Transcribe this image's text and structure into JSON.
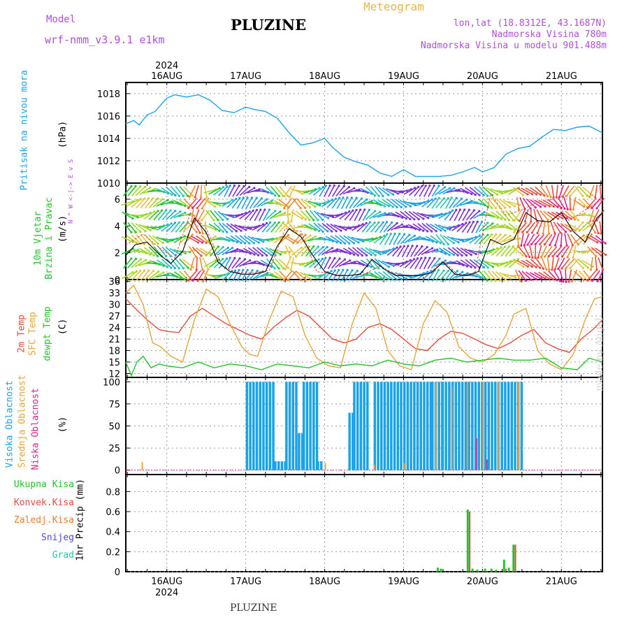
{
  "header": {
    "model_label": "Model",
    "model_value": "wrf-nmm_v3.9.1 e1km",
    "title": "PLUZINE",
    "meteogram": "Meteogram",
    "lonlat": "lon,lat (18.8312E, 43.1687N)",
    "elevation": "Nadmorska Visina 780m",
    "model_elevation": "Nadmorska Visina u modelu 901.488m"
  },
  "footer": {
    "station": "PLUZINE",
    "credit": "made by Angel"
  },
  "colors": {
    "pressure": "#1aa3e8",
    "temp2m": "#e84a3c",
    "sfc": "#e6a53a",
    "dew": "#22c42a",
    "high_cloud": "#1aa3e8",
    "mid_cloud": "#e6a53a",
    "low_cloud": "#e0208a",
    "frame": "#000000",
    "grid": "#9a9a9a"
  },
  "chart_data": [
    {
      "type": "line",
      "panel": "pressure",
      "ylabel_outer": "Pritisak na nivou mora",
      "ylabel": "(hPa)",
      "ylim": [
        1010,
        1019
      ],
      "yticks": [
        1010,
        1012,
        1014,
        1016,
        1018
      ],
      "xlim": [
        -0.52,
        5.52
      ],
      "x_tick_days": [
        0,
        1,
        2,
        3,
        4,
        5
      ],
      "x_tick_labels": [
        "16AUG",
        "17AUG",
        "18AUG",
        "19AUG",
        "20AUG",
        "21AUG"
      ],
      "year_label": "2024",
      "series": [
        {
          "name": "Pritisak na nivou mora",
          "x": [
            -0.52,
            -0.42,
            -0.35,
            -0.25,
            -0.15,
            0,
            0.1,
            0.25,
            0.4,
            0.55,
            0.7,
            0.85,
            1.0,
            1.1,
            1.25,
            1.4,
            1.55,
            1.7,
            1.85,
            2.0,
            2.1,
            2.25,
            2.4,
            2.55,
            2.7,
            2.85,
            3.0,
            3.15,
            3.3,
            3.45,
            3.6,
            3.75,
            3.9,
            4.0,
            4.15,
            4.3,
            4.45,
            4.6,
            4.75,
            4.9,
            5.05,
            5.2,
            5.35,
            5.52
          ],
          "values": [
            1015.3,
            1015.6,
            1015.2,
            1016.1,
            1016.4,
            1017.6,
            1017.9,
            1017.7,
            1017.9,
            1017.4,
            1016.5,
            1016.3,
            1016.8,
            1016.6,
            1016.4,
            1015.8,
            1014.5,
            1013.4,
            1013.6,
            1014.0,
            1013.2,
            1012.3,
            1011.9,
            1011.6,
            1010.9,
            1010.6,
            1011.2,
            1010.6,
            1010.6,
            1010.6,
            1010.7,
            1011.0,
            1011.4,
            1011.0,
            1011.4,
            1012.6,
            1013.1,
            1013.3,
            1014.1,
            1014.8,
            1014.7,
            1015.0,
            1015.1,
            1014.5
          ]
        }
      ]
    },
    {
      "type": "line",
      "panel": "wind",
      "ylabel_outer": "10m Vjetar Brzina i Pravac",
      "ylabel": "(m/s)",
      "ylim": [
        0,
        7.2
      ],
      "yticks": [
        0,
        2,
        4,
        6
      ],
      "compass": "N ^ W <-|-> E v S",
      "series": [
        {
          "name": "speed",
          "x": [
            -0.52,
            -0.4,
            -0.25,
            -0.1,
            0.05,
            0.2,
            0.35,
            0.5,
            0.65,
            0.8,
            0.95,
            1.1,
            1.25,
            1.4,
            1.55,
            1.7,
            1.85,
            2.0,
            2.15,
            2.3,
            2.45,
            2.6,
            2.75,
            2.9,
            3.05,
            3.2,
            3.35,
            3.5,
            3.65,
            3.8,
            3.95,
            4.1,
            4.25,
            4.4,
            4.55,
            4.7,
            4.85,
            5.0,
            5.15,
            5.3,
            5.45,
            5.52
          ],
          "values": [
            1.8,
            2.6,
            2.8,
            1.9,
            1.2,
            2.1,
            4.6,
            3.5,
            1.3,
            0.6,
            0.4,
            0.4,
            0.6,
            2.5,
            3.8,
            3.2,
            1.8,
            0.6,
            0.3,
            0.3,
            0.4,
            1.5,
            0.8,
            0.3,
            0.3,
            0.3,
            0.5,
            1.3,
            0.4,
            0.3,
            0.6,
            3.0,
            2.6,
            3.0,
            5.0,
            4.4,
            4.3,
            5.0,
            3.6,
            2.8,
            4.6,
            5.0
          ]
        },
        {
          "name": "gust",
          "x": [
            -0.52,
            -0.3,
            -0.1,
            0.1,
            0.3,
            0.5,
            0.7,
            0.9,
            1.1,
            1.3,
            1.5,
            1.7,
            1.9,
            2.1,
            2.3,
            2.5,
            2.7,
            2.9,
            3.1,
            3.3,
            3.5,
            3.7,
            3.9,
            4.1,
            4.3,
            4.5,
            4.7,
            4.9,
            5.1,
            5.3,
            5.52
          ],
          "values": [
            2.6,
            3.4,
            2.4,
            1.6,
            5.0,
            3.8,
            1.0,
            0.5,
            0.5,
            0.7,
            3.8,
            3.6,
            0.6,
            0.4,
            0.3,
            0.4,
            1.0,
            0.4,
            0.3,
            0.3,
            1.4,
            0.3,
            0.4,
            6.4,
            4.8,
            5.2,
            5.8,
            6.0,
            4.4,
            5.2,
            6.0
          ]
        }
      ]
    },
    {
      "type": "line",
      "panel": "temperature",
      "ylabel_lines": [
        "2m Temp",
        "SFC Temp",
        "dewpt Temp"
      ],
      "ylabel": "(C)",
      "ylim": [
        11,
        36.5
      ],
      "yticks": [
        12,
        15,
        18,
        21,
        24,
        27,
        30,
        33,
        36
      ],
      "series": [
        {
          "name": "2m Temp",
          "x": [
            -0.52,
            -0.4,
            -0.25,
            -0.1,
            0,
            0.15,
            0.3,
            0.45,
            0.6,
            0.75,
            0.9,
            1.05,
            1.2,
            1.35,
            1.5,
            1.65,
            1.8,
            1.95,
            2.1,
            2.25,
            2.4,
            2.55,
            2.7,
            2.85,
            3.0,
            3.15,
            3.3,
            3.45,
            3.6,
            3.75,
            3.9,
            4.05,
            4.2,
            4.35,
            4.5,
            4.65,
            4.8,
            4.95,
            5.1,
            5.25,
            5.4,
            5.52
          ],
          "values": [
            31.5,
            29,
            26,
            23.5,
            23,
            22.7,
            27,
            29,
            27,
            25,
            23.5,
            22,
            21,
            24,
            26.5,
            28.5,
            27,
            24,
            21,
            20,
            21,
            24,
            25,
            23.5,
            21,
            18.5,
            18,
            21,
            23,
            22.5,
            21,
            19.5,
            18.5,
            20,
            22,
            23.5,
            20,
            18.5,
            17.5,
            21,
            23.5,
            26
          ]
        },
        {
          "name": "SFC Temp",
          "x": [
            -0.52,
            -0.42,
            -0.3,
            -0.18,
            -0.08,
            0.05,
            0.2,
            0.35,
            0.5,
            0.65,
            0.8,
            0.95,
            1.05,
            1.15,
            1.3,
            1.45,
            1.6,
            1.75,
            1.9,
            2.05,
            2.2,
            2.35,
            2.5,
            2.65,
            2.8,
            2.95,
            3.1,
            3.25,
            3.4,
            3.55,
            3.7,
            3.85,
            4.0,
            4.15,
            4.3,
            4.4,
            4.55,
            4.7,
            4.85,
            5.0,
            5.15,
            5.3,
            5.42,
            5.52
          ],
          "values": [
            33,
            35,
            30,
            20,
            19,
            16.5,
            15,
            26,
            34,
            32,
            25,
            19,
            17,
            16.5,
            26,
            33.5,
            32,
            22,
            16,
            14,
            13.5,
            25,
            33,
            29,
            18,
            14,
            13,
            25,
            31,
            28,
            19,
            16,
            15,
            17,
            22,
            27.5,
            29,
            18,
            14.5,
            13,
            17,
            26,
            31.5,
            32
          ]
        },
        {
          "name": "dewpt Temp",
          "x": [
            -0.52,
            -0.45,
            -0.38,
            -0.3,
            -0.2,
            -0.1,
            0,
            0.2,
            0.4,
            0.6,
            0.8,
            1.0,
            1.2,
            1.4,
            1.6,
            1.8,
            2.0,
            2.2,
            2.4,
            2.6,
            2.8,
            3.0,
            3.2,
            3.4,
            3.6,
            3.8,
            4.0,
            4.2,
            4.4,
            4.6,
            4.8,
            5.0,
            5.2,
            5.35,
            5.52
          ],
          "values": [
            15,
            11.5,
            15,
            16.5,
            13.5,
            14.5,
            14,
            13.5,
            15,
            13.5,
            14.5,
            14,
            13,
            14.5,
            14,
            13.5,
            15,
            14,
            14.5,
            14,
            15.5,
            14.5,
            14,
            15.5,
            16,
            15,
            15.5,
            16,
            15.5,
            15.5,
            16,
            13.5,
            13,
            16,
            15
          ]
        }
      ]
    },
    {
      "type": "bar",
      "panel": "clouds",
      "ylabel_lines": [
        "Visoka Oblacnost",
        "Srednja Oblacnost",
        "Niska Oblacnost"
      ],
      "ylabel": "(%)",
      "ylim": [
        -5,
        105
      ],
      "yticks": [
        0,
        25,
        50,
        75,
        100
      ],
      "series": [
        {
          "name": "Visoka Oblacnost",
          "segments": [
            {
              "from": 1.0,
              "to": 1.35,
              "value": 100
            },
            {
              "from": 1.36,
              "to": 1.5,
              "value": 10
            },
            {
              "from": 1.5,
              "to": 1.65,
              "value": 100
            },
            {
              "from": 1.66,
              "to": 1.72,
              "value": 42
            },
            {
              "from": 1.72,
              "to": 1.9,
              "value": 100
            },
            {
              "from": 1.9,
              "to": 1.95,
              "value": 10
            },
            {
              "from": 2.3,
              "to": 2.36,
              "value": 65
            },
            {
              "from": 2.36,
              "to": 2.55,
              "value": 100
            },
            {
              "from": 2.62,
              "to": 3.35,
              "value": 100
            },
            {
              "from": 3.35,
              "to": 3.48,
              "value": 100
            },
            {
              "from": 3.48,
              "to": 4.5,
              "value": 100
            }
          ]
        },
        {
          "name": "Srednja Oblacnost",
          "points": [
            [
              -0.32,
              9
            ],
            [
              2.0,
              8
            ],
            [
              2.62,
              6
            ],
            [
              3.0,
              8
            ],
            [
              3.4,
              100
            ],
            [
              3.6,
              95
            ],
            [
              3.8,
              100
            ],
            [
              4.0,
              100
            ],
            [
              4.2,
              100
            ],
            [
              4.45,
              100
            ]
          ]
        },
        {
          "name": "Niska Oblacnost",
          "points": [
            [
              3.92,
              36
            ],
            [
              4.05,
              12
            ]
          ]
        }
      ]
    },
    {
      "type": "bar",
      "panel": "precipitation",
      "ylabel_lines": [
        "Ukupna Kisa",
        "Konvek.Kisa",
        "Zaledj.Kisa",
        "Snijeg",
        "Grad"
      ],
      "ylabel": "1hr Precip (mm)",
      "ylim": [
        0,
        0.97
      ],
      "yticks": [
        0,
        0.2,
        0.4,
        0.6,
        0.8
      ],
      "ytick_labels": [
        "0",
        "0.2",
        "0.4",
        "0.6",
        "0.8"
      ],
      "series": [
        {
          "name": "Ukupna Kisa",
          "x": [
            3.42,
            3.46,
            3.8,
            3.86,
            3.92,
            4.02,
            4.1,
            4.16,
            4.26,
            4.32,
            4.38
          ],
          "values": [
            0.04,
            0.03,
            0.62,
            0.03,
            0.02,
            0.03,
            0.03,
            0.02,
            0.12,
            0.04,
            0.27
          ]
        },
        {
          "name": "Konvek.Kisa",
          "x": [
            3.82,
            4.28,
            4.4
          ],
          "values": [
            0.6,
            0.03,
            0.27
          ]
        }
      ]
    }
  ]
}
